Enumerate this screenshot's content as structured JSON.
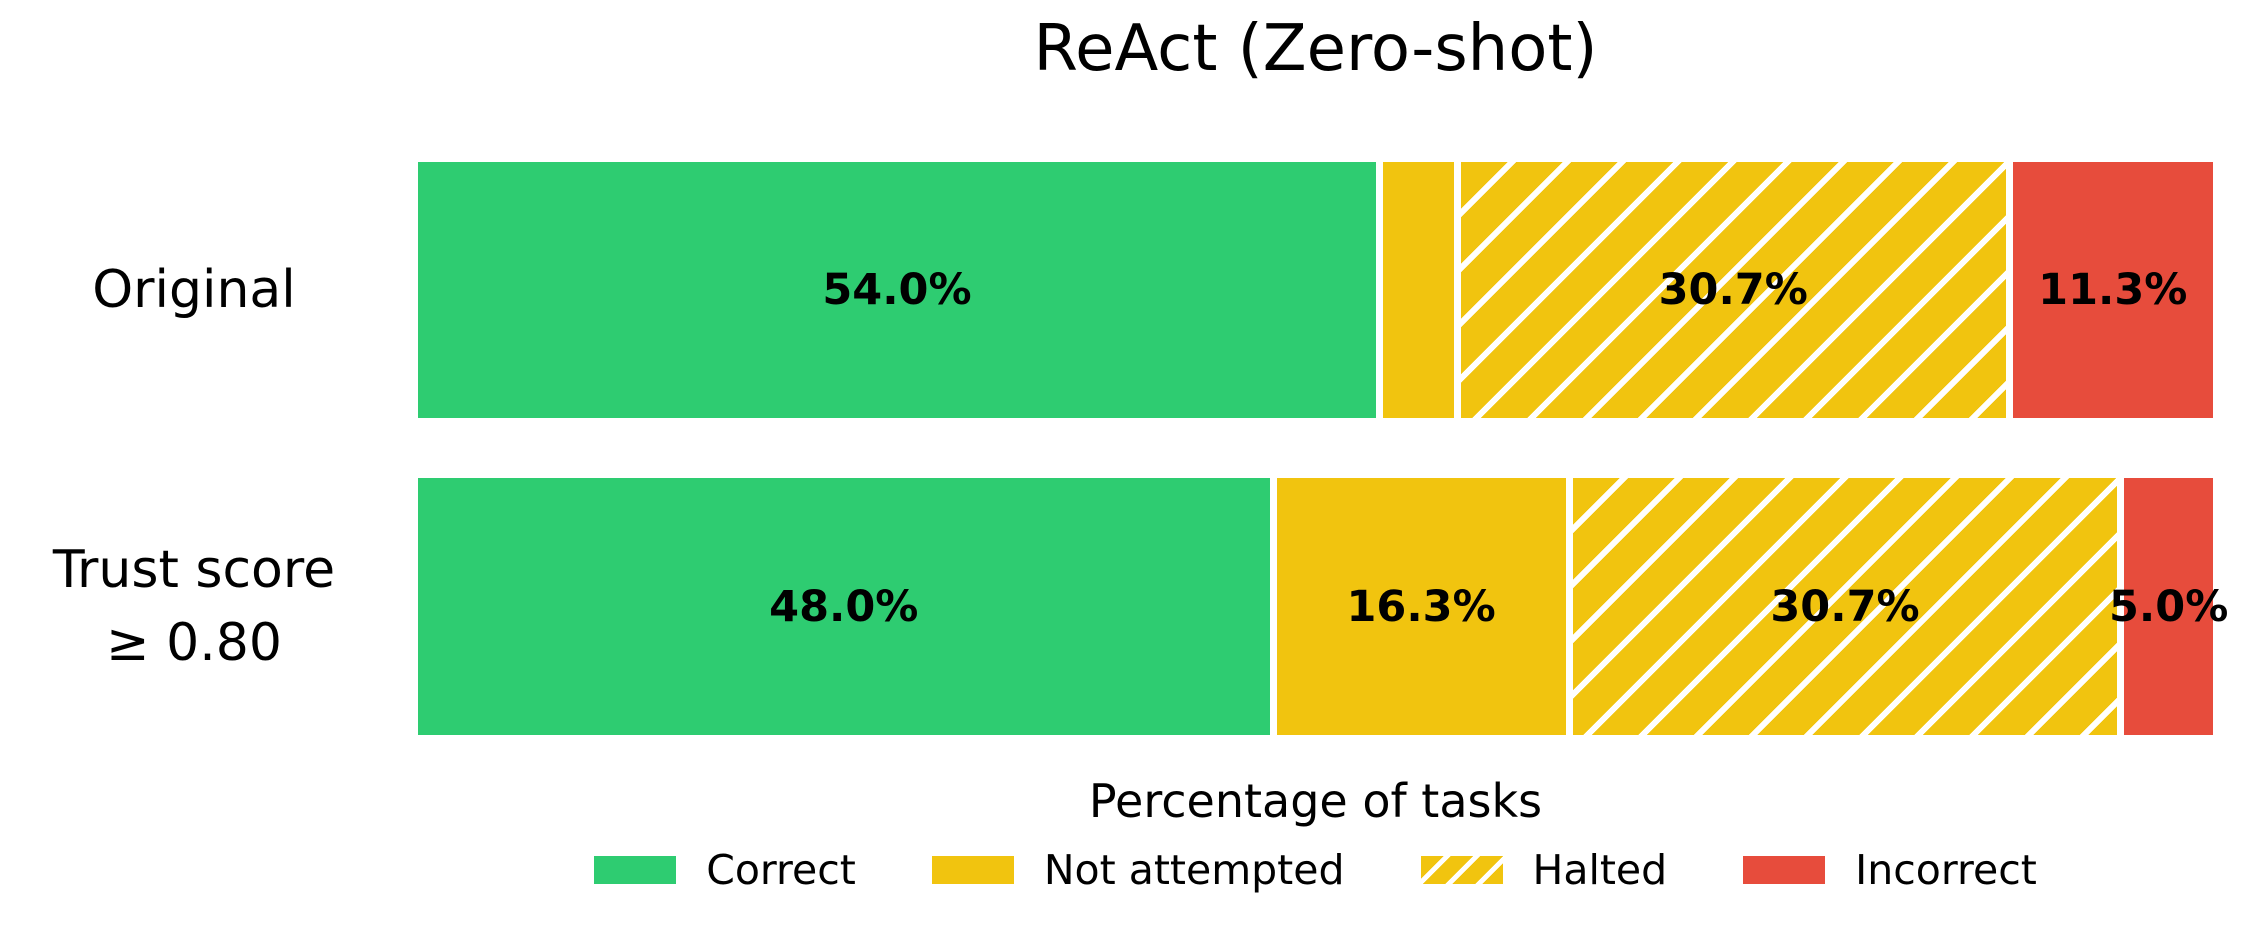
{
  "title": "ReAct (Zero-shot)",
  "xlabel": "Percentage of tasks",
  "colors": {
    "correct": "#2ecc71",
    "not_attempted": "#f1c40f",
    "halted": "#f1c40f",
    "incorrect": "#e74c3c",
    "hatch_stripe": "#ffffff",
    "background": "#ffffff",
    "text": "#000000"
  },
  "legend": [
    {
      "key": "correct",
      "label": "Correct",
      "color": "#2ecc71",
      "hatched": false
    },
    {
      "key": "not-attempted",
      "label": "Not attempted",
      "color": "#f1c40f",
      "hatched": false
    },
    {
      "key": "halted",
      "label": "Halted",
      "color": "#f1c40f",
      "hatched": true
    },
    {
      "key": "incorrect",
      "label": "Incorrect",
      "color": "#e74c3c",
      "hatched": false
    }
  ],
  "chart_data": {
    "type": "bar",
    "orientation": "horizontal",
    "stacked": true,
    "title": "ReAct (Zero-shot)",
    "xlabel": "Percentage of tasks",
    "xlim": [
      0,
      100
    ],
    "grid": false,
    "legend_position": "bottom-center",
    "categories": [
      "Original",
      "Trust score ≥ 0.80"
    ],
    "category_lines": [
      [
        "Original"
      ],
      [
        "Trust score",
        "≥ 0.80"
      ]
    ],
    "series": [
      {
        "key": "correct",
        "name": "Correct",
        "color": "#2ecc71",
        "hatch": null,
        "values": [
          54.0,
          48.0
        ],
        "bar_labels": [
          "54.0%",
          "48.0%"
        ]
      },
      {
        "key": "not-attempted",
        "name": "Not attempted",
        "color": "#f1c40f",
        "hatch": null,
        "values": [
          4.0,
          16.3
        ],
        "bar_labels": [
          null,
          "16.3%"
        ]
      },
      {
        "key": "halted",
        "name": "Halted",
        "color": "#f1c40f",
        "hatch": "/",
        "values": [
          30.7,
          30.7
        ],
        "bar_labels": [
          "30.7%",
          "30.7%"
        ]
      },
      {
        "key": "incorrect",
        "name": "Incorrect",
        "color": "#e74c3c",
        "hatch": null,
        "values": [
          11.3,
          5.0
        ],
        "bar_labels": [
          "11.3%",
          "5.0%"
        ]
      }
    ]
  }
}
